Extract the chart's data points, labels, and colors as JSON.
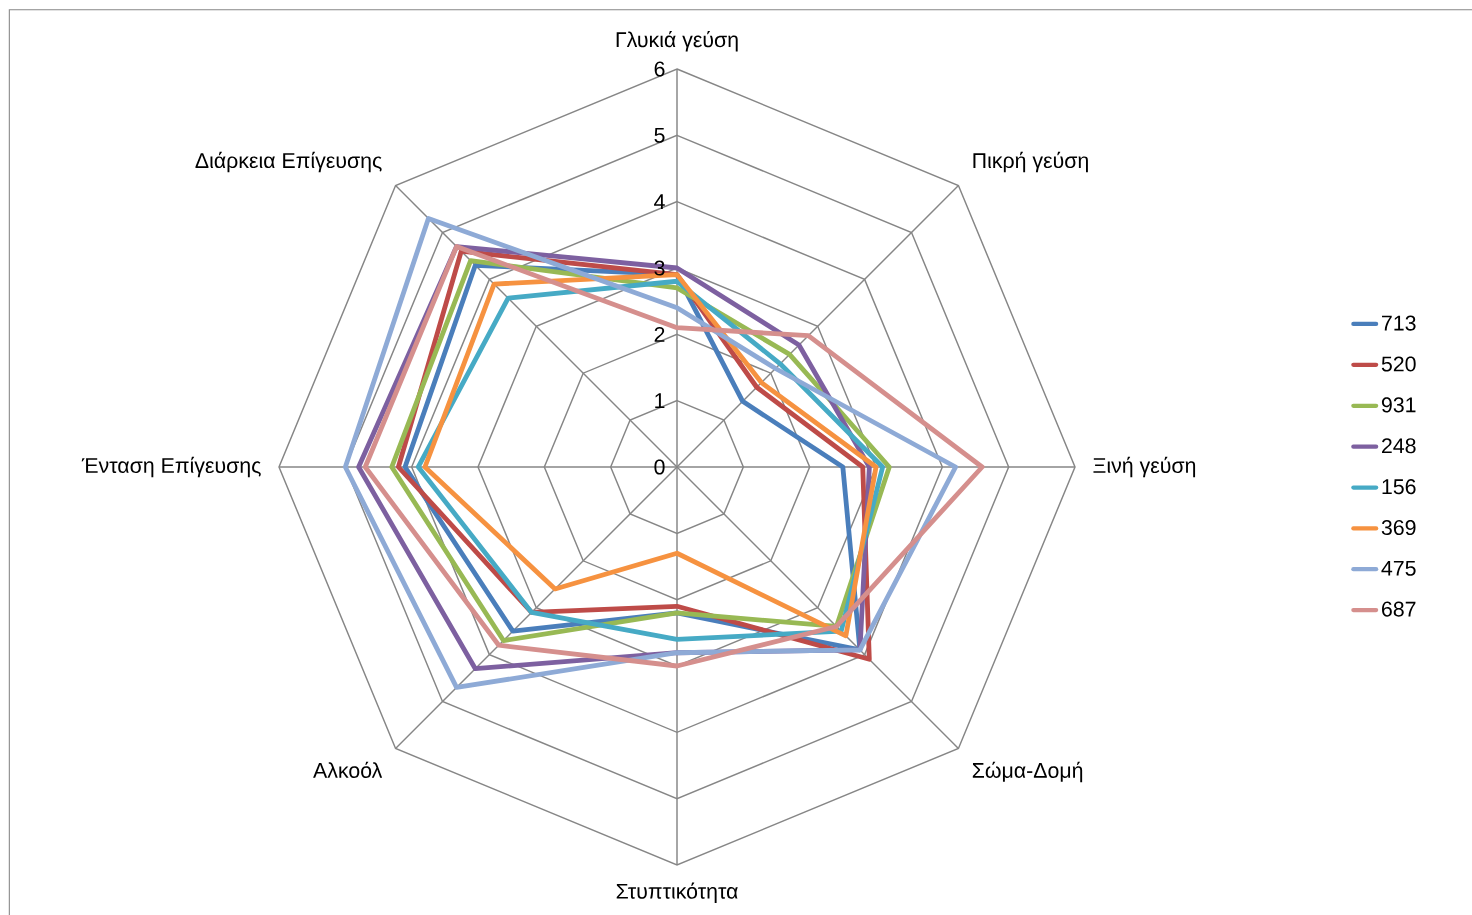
{
  "chart_data": {
    "type": "radar",
    "categories": [
      "Γλυκιά γεύση",
      "Πικρή γεύση",
      "Ξινή γεύση",
      "Σώμα-Δομή",
      "Στυπτικότητα",
      "Αλκοόλ",
      "Ένταση Επίγευσης",
      "Διάρκεια Επίγευσης"
    ],
    "ylim": [
      0,
      6
    ],
    "yticks": [
      0,
      1,
      2,
      3,
      4,
      5,
      6
    ],
    "grid": true,
    "legend": "right",
    "series": [
      {
        "name": "713",
        "color": "#4a7ebb",
        "values": [
          2.9,
          1.4,
          2.5,
          3.9,
          2.2,
          3.5,
          4.1,
          4.3
        ]
      },
      {
        "name": "520",
        "color": "#be4b48",
        "values": [
          2.9,
          1.7,
          2.8,
          4.1,
          2.1,
          3.1,
          4.2,
          4.6
        ]
      },
      {
        "name": "931",
        "color": "#98b954",
        "values": [
          2.7,
          2.4,
          3.2,
          3.4,
          2.2,
          3.7,
          4.3,
          4.4
        ]
      },
      {
        "name": "248",
        "color": "#7d60a0",
        "values": [
          3.0,
          2.6,
          2.9,
          3.9,
          2.8,
          4.3,
          4.8,
          4.7
        ]
      },
      {
        "name": "156",
        "color": "#46aac5",
        "values": [
          2.8,
          2.2,
          3.1,
          3.5,
          2.6,
          3.1,
          3.9,
          3.6
        ]
      },
      {
        "name": "369",
        "color": "#f69240",
        "values": [
          2.9,
          1.8,
          3.0,
          3.6,
          1.3,
          2.6,
          3.8,
          3.9
        ]
      },
      {
        "name": "475",
        "color": "#8eaad6",
        "values": [
          2.4,
          2.1,
          4.2,
          3.9,
          2.8,
          4.7,
          5.0,
          5.3
        ]
      },
      {
        "name": "687",
        "color": "#d58f8d",
        "values": [
          2.1,
          2.8,
          4.6,
          3.4,
          3.0,
          3.8,
          4.7,
          4.7
        ]
      }
    ]
  }
}
